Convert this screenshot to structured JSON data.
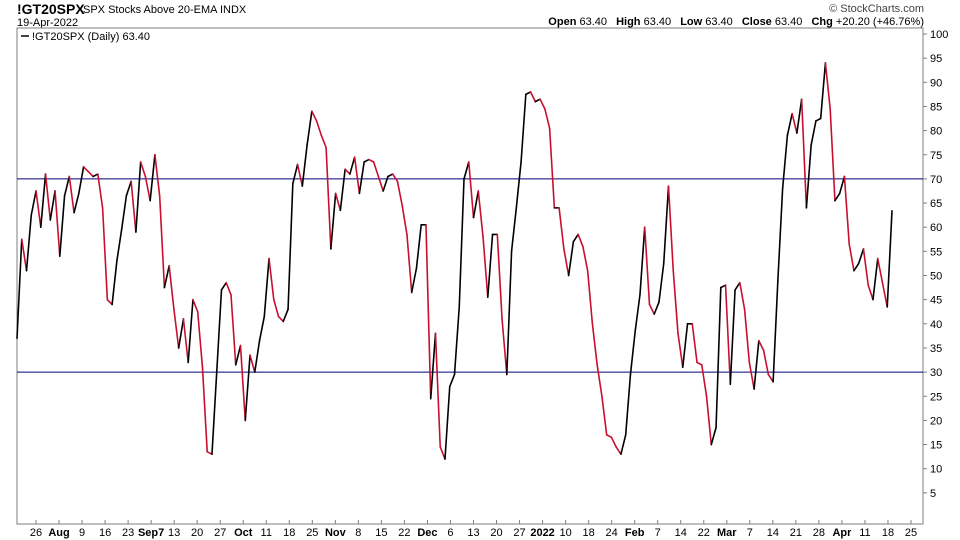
{
  "header": {
    "symbol": "!GT20SPX",
    "description": "SPX Stocks Above 20-EMA INDX",
    "date": "19-Apr-2022",
    "brand": "© StockCharts.com",
    "open_label": "Open",
    "open_value": "63.40",
    "high_label": "High",
    "high_value": "63.40",
    "low_label": "Low",
    "low_value": "63.40",
    "close_label": "Close",
    "close_value": "63.40",
    "chg_label": "Chg",
    "chg_value": "+20.20 (+46.76%)"
  },
  "chart_data": {
    "type": "line",
    "legend": {
      "text": "!GT20SPX (Daily) 63.40",
      "placement": "top-left",
      "color": "#000000"
    },
    "ylim": [
      0,
      100
    ],
    "y_ticks": [
      5,
      10,
      15,
      20,
      25,
      30,
      35,
      40,
      45,
      50,
      55,
      60,
      65,
      70,
      75,
      80,
      85,
      90,
      95,
      100
    ],
    "reference_lines": [
      {
        "value": 70,
        "color": "#00007f"
      },
      {
        "value": 30,
        "color": "#00007f"
      }
    ],
    "x_ticks": [
      {
        "label": "26",
        "month": false
      },
      {
        "label": "Aug",
        "month": true
      },
      {
        "label": "9",
        "month": false
      },
      {
        "label": "16",
        "month": false
      },
      {
        "label": "23",
        "month": false
      },
      {
        "label": "Sep7",
        "month": true
      },
      {
        "label": "13",
        "month": false
      },
      {
        "label": "20",
        "month": false
      },
      {
        "label": "27",
        "month": false
      },
      {
        "label": "Oct",
        "month": true
      },
      {
        "label": "11",
        "month": false
      },
      {
        "label": "18",
        "month": false
      },
      {
        "label": "25",
        "month": false
      },
      {
        "label": "Nov",
        "month": true
      },
      {
        "label": "8",
        "month": false
      },
      {
        "label": "15",
        "month": false
      },
      {
        "label": "22",
        "month": false
      },
      {
        "label": "Dec",
        "month": true
      },
      {
        "label": "6",
        "month": false
      },
      {
        "label": "13",
        "month": false
      },
      {
        "label": "20",
        "month": false
      },
      {
        "label": "27",
        "month": false
      },
      {
        "label": "2022",
        "month": true
      },
      {
        "label": "10",
        "month": false
      },
      {
        "label": "18",
        "month": false
      },
      {
        "label": "24",
        "month": false
      },
      {
        "label": "Feb",
        "month": true
      },
      {
        "label": "7",
        "month": false
      },
      {
        "label": "14",
        "month": false
      },
      {
        "label": "22",
        "month": false
      },
      {
        "label": "Mar",
        "month": true
      },
      {
        "label": "7",
        "month": false
      },
      {
        "label": "14",
        "month": false
      },
      {
        "label": "21",
        "month": false
      },
      {
        "label": "28",
        "month": false
      },
      {
        "label": "Apr",
        "month": true
      },
      {
        "label": "11",
        "month": false
      },
      {
        "label": "18",
        "month": false
      },
      {
        "label": "25",
        "month": false
      }
    ],
    "up_color": "#000000",
    "down_color": "#c8102e",
    "series": [
      {
        "values": [
          37,
          57.5,
          51,
          62.5,
          67.5,
          60,
          71,
          61.5,
          67.5,
          54,
          66.5,
          70.5,
          63,
          67,
          72.5,
          71.5,
          70.5,
          71,
          64,
          45,
          44,
          53,
          59.5,
          66.5,
          69.5,
          59,
          73.5,
          70.5,
          65.5,
          75,
          66.5,
          47.5,
          52,
          43,
          35,
          41,
          32,
          45,
          42.5,
          31,
          13.5,
          13,
          30,
          47,
          48.5,
          46,
          31.5,
          35.5,
          20,
          33.5,
          30,
          36.5,
          41.5,
          53.5,
          45,
          41.5,
          40.5,
          43,
          69,
          73,
          68.5,
          77,
          84,
          82,
          79,
          76.5,
          55.5,
          67,
          63.5,
          72,
          71,
          74.5,
          67,
          73.5,
          74,
          73.5,
          70.5,
          67.5,
          70.5,
          71,
          69.5,
          64.5,
          58.5,
          46.5,
          51.5,
          60.5,
          60.5,
          24.5,
          38,
          14.5,
          12,
          27,
          29.5,
          43.5,
          70,
          73.5,
          62,
          67.5,
          58,
          45.5,
          58.5,
          58.5,
          41,
          29.5,
          55,
          64,
          73.5,
          87.5,
          88,
          86,
          86.5,
          84.5,
          80.5,
          64,
          64,
          55.5,
          50,
          57,
          58.5,
          56,
          51,
          40,
          31.5,
          25,
          17,
          16.5,
          14.5,
          13,
          17,
          29.5,
          38.5,
          46,
          60,
          44,
          42,
          44.5,
          52.5,
          68.5,
          51,
          38,
          31,
          40,
          40,
          32,
          31.5,
          25,
          15,
          18.5,
          47.5,
          48,
          27.5,
          47,
          48.5,
          43,
          32,
          26.5,
          36.5,
          34.5,
          29.5,
          28,
          49,
          68,
          79,
          83.5,
          79.5,
          86.5,
          64,
          77,
          82,
          82.5,
          94,
          84.5,
          65.5,
          67,
          70.5,
          56.5,
          51,
          52.5,
          55.5,
          48,
          45,
          53.5,
          48.5,
          43.5,
          63.4
        ]
      }
    ]
  }
}
